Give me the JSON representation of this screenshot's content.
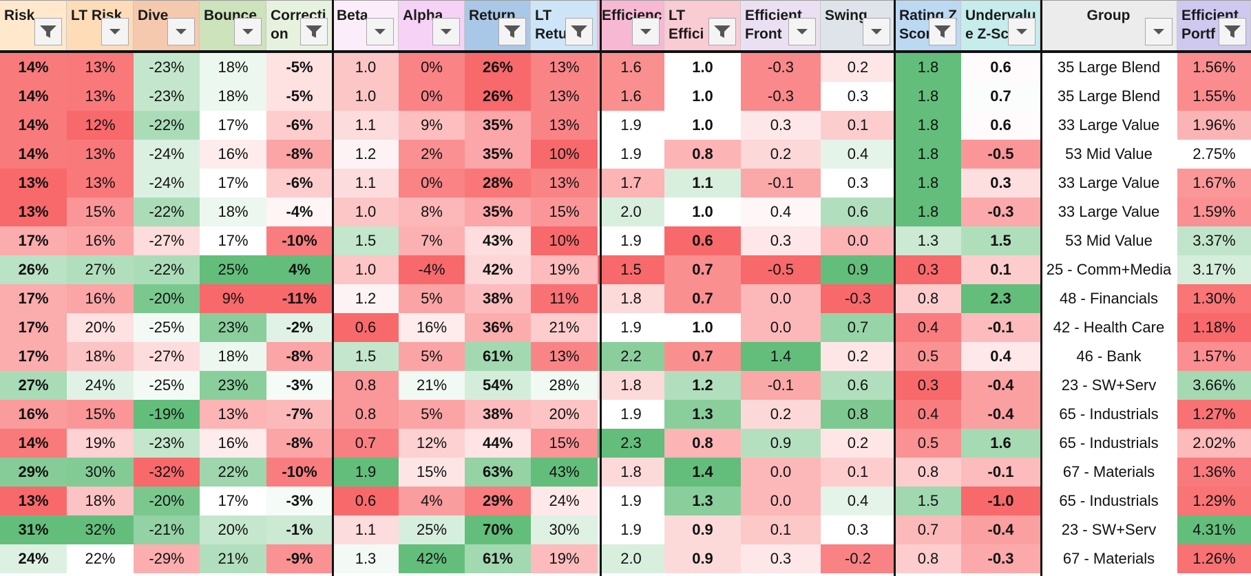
{
  "headers": [
    {
      "label": "Risk",
      "bg": "#ffe8cc",
      "filter": "active"
    },
    {
      "label": "LT Risk",
      "bg": "#ffdcb8",
      "filter": "dropdown"
    },
    {
      "label": "Dive",
      "bg": "#f5c9ad",
      "filter": "dropdown"
    },
    {
      "label": "Bounce",
      "bg": "#cde3bb",
      "filter": "dropdown"
    },
    {
      "label": "Correcti\non",
      "bg": "#e6f2de",
      "filter": "active"
    },
    {
      "label": "Beta",
      "bg": "#fbeefa",
      "filter": "dropdown"
    },
    {
      "label": "Alpha",
      "bg": "#f6d2f6",
      "filter": "dropdown"
    },
    {
      "label": "Return",
      "bg": "#a9c7e6",
      "filter": "active"
    },
    {
      "label": "LT\nRetu",
      "bg": "#cde5f7",
      "filter": "active"
    },
    {
      "label": "Efficiency",
      "bg": "#f7b8d4",
      "filter": "dropdown"
    },
    {
      "label": "LT\nEffici",
      "bg": "#f9cbd3",
      "filter": "active"
    },
    {
      "label": "Efficient\nFront",
      "bg": "#ebe0f1",
      "filter": "dropdown"
    },
    {
      "label": "Swing",
      "bg": "#dfe3ea",
      "filter": "dropdown"
    },
    {
      "label": "Rating Z\nScore",
      "bg": "#bcd9f2",
      "filter": "active"
    },
    {
      "label": "Undervalu\ne Z-Sc",
      "bg": "#c6ecec",
      "filter": "dropdown"
    },
    {
      "label": "Group",
      "bg": "#ececec",
      "filter": "dropdown"
    },
    {
      "label": "Efficient\nPortf",
      "bg": "#cfc8ef",
      "filter": "active"
    }
  ],
  "rows": [
    {
      "risk": "14%",
      "lt_risk": "13%",
      "dive": "-23%",
      "bounce": "18%",
      "correction": "-5%",
      "beta": "1.0",
      "alpha": "0%",
      "return": "26%",
      "lt_return": "13%",
      "efficiency": "1.6",
      "lt_efficiency": "1.0",
      "efficient_front": "-0.3",
      "swing": "0.2",
      "rating_z": "1.8",
      "undervalue_z": "0.6",
      "group": "35 Large Blend",
      "efficient_portf": "1.56%"
    },
    {
      "risk": "14%",
      "lt_risk": "13%",
      "dive": "-23%",
      "bounce": "18%",
      "correction": "-5%",
      "beta": "1.0",
      "alpha": "0%",
      "return": "26%",
      "lt_return": "13%",
      "efficiency": "1.6",
      "lt_efficiency": "1.0",
      "efficient_front": "-0.3",
      "swing": "0.3",
      "rating_z": "1.8",
      "undervalue_z": "0.7",
      "group": "35 Large Blend",
      "efficient_portf": "1.55%"
    },
    {
      "risk": "14%",
      "lt_risk": "12%",
      "dive": "-22%",
      "bounce": "17%",
      "correction": "-6%",
      "beta": "1.1",
      "alpha": "9%",
      "return": "35%",
      "lt_return": "13%",
      "efficiency": "1.9",
      "lt_efficiency": "1.0",
      "efficient_front": "0.3",
      "swing": "0.1",
      "rating_z": "1.8",
      "undervalue_z": "0.6",
      "group": "33 Large Value",
      "efficient_portf": "1.96%"
    },
    {
      "risk": "14%",
      "lt_risk": "13%",
      "dive": "-24%",
      "bounce": "16%",
      "correction": "-8%",
      "beta": "1.2",
      "alpha": "2%",
      "return": "35%",
      "lt_return": "10%",
      "efficiency": "1.9",
      "lt_efficiency": "0.8",
      "efficient_front": "0.2",
      "swing": "0.4",
      "rating_z": "1.8",
      "undervalue_z": "-0.5",
      "group": "53 Mid Value",
      "efficient_portf": "2.75%"
    },
    {
      "risk": "13%",
      "lt_risk": "13%",
      "dive": "-24%",
      "bounce": "17%",
      "correction": "-6%",
      "beta": "1.1",
      "alpha": "0%",
      "return": "28%",
      "lt_return": "13%",
      "efficiency": "1.7",
      "lt_efficiency": "1.1",
      "efficient_front": "-0.1",
      "swing": "0.3",
      "rating_z": "1.8",
      "undervalue_z": "0.3",
      "group": "33 Large Value",
      "efficient_portf": "1.67%"
    },
    {
      "risk": "13%",
      "lt_risk": "15%",
      "dive": "-22%",
      "bounce": "18%",
      "correction": "-4%",
      "beta": "1.0",
      "alpha": "8%",
      "return": "35%",
      "lt_return": "15%",
      "efficiency": "2.0",
      "lt_efficiency": "1.0",
      "efficient_front": "0.4",
      "swing": "0.6",
      "rating_z": "1.8",
      "undervalue_z": "-0.3",
      "group": "33 Large Value",
      "efficient_portf": "1.59%"
    },
    {
      "risk": "17%",
      "lt_risk": "16%",
      "dive": "-27%",
      "bounce": "17%",
      "correction": "-10%",
      "beta": "1.5",
      "alpha": "7%",
      "return": "43%",
      "lt_return": "10%",
      "efficiency": "1.9",
      "lt_efficiency": "0.6",
      "efficient_front": "0.3",
      "swing": "0.0",
      "rating_z": "1.3",
      "undervalue_z": "1.5",
      "group": "53 Mid Value",
      "efficient_portf": "3.37%"
    },
    {
      "risk": "26%",
      "lt_risk": "27%",
      "dive": "-22%",
      "bounce": "25%",
      "correction": "4%",
      "beta": "1.0",
      "alpha": "-4%",
      "return": "42%",
      "lt_return": "19%",
      "efficiency": "1.5",
      "lt_efficiency": "0.7",
      "efficient_front": "-0.5",
      "swing": "0.9",
      "rating_z": "0.3",
      "undervalue_z": "0.1",
      "group": "25 - Comm+Media",
      "efficient_portf": "3.17%"
    },
    {
      "risk": "17%",
      "lt_risk": "16%",
      "dive": "-20%",
      "bounce": "9%",
      "correction": "-11%",
      "beta": "1.2",
      "alpha": "5%",
      "return": "38%",
      "lt_return": "11%",
      "efficiency": "1.8",
      "lt_efficiency": "0.7",
      "efficient_front": "0.0",
      "swing": "-0.3",
      "rating_z": "0.8",
      "undervalue_z": "2.3",
      "group": "48 - Financials",
      "efficient_portf": "1.30%"
    },
    {
      "risk": "17%",
      "lt_risk": "20%",
      "dive": "-25%",
      "bounce": "23%",
      "correction": "-2%",
      "beta": "0.6",
      "alpha": "16%",
      "return": "36%",
      "lt_return": "21%",
      "efficiency": "1.9",
      "lt_efficiency": "1.0",
      "efficient_front": "0.0",
      "swing": "0.7",
      "rating_z": "0.4",
      "undervalue_z": "-0.1",
      "group": "42 - Health Care",
      "efficient_portf": "1.18%"
    },
    {
      "risk": "17%",
      "lt_risk": "18%",
      "dive": "-27%",
      "bounce": "18%",
      "correction": "-8%",
      "beta": "1.5",
      "alpha": "5%",
      "return": "61%",
      "lt_return": "13%",
      "efficiency": "2.2",
      "lt_efficiency": "0.7",
      "efficient_front": "1.4",
      "swing": "0.2",
      "rating_z": "0.5",
      "undervalue_z": "0.4",
      "group": "46 - Bank",
      "efficient_portf": "1.57%"
    },
    {
      "risk": "27%",
      "lt_risk": "24%",
      "dive": "-25%",
      "bounce": "23%",
      "correction": "-3%",
      "beta": "0.8",
      "alpha": "21%",
      "return": "54%",
      "lt_return": "28%",
      "efficiency": "1.8",
      "lt_efficiency": "1.2",
      "efficient_front": "-0.1",
      "swing": "0.6",
      "rating_z": "0.3",
      "undervalue_z": "-0.4",
      "group": "23 - SW+Serv",
      "efficient_portf": "3.66%"
    },
    {
      "risk": "16%",
      "lt_risk": "15%",
      "dive": "-19%",
      "bounce": "13%",
      "correction": "-7%",
      "beta": "0.8",
      "alpha": "5%",
      "return": "38%",
      "lt_return": "20%",
      "efficiency": "1.9",
      "lt_efficiency": "1.3",
      "efficient_front": "0.2",
      "swing": "0.8",
      "rating_z": "0.4",
      "undervalue_z": "-0.4",
      "group": "65 - Industrials",
      "efficient_portf": "1.27%"
    },
    {
      "risk": "14%",
      "lt_risk": "19%",
      "dive": "-23%",
      "bounce": "16%",
      "correction": "-8%",
      "beta": "0.7",
      "alpha": "12%",
      "return": "44%",
      "lt_return": "15%",
      "efficiency": "2.3",
      "lt_efficiency": "0.8",
      "efficient_front": "0.9",
      "swing": "0.2",
      "rating_z": "0.5",
      "undervalue_z": "1.6",
      "group": "65 - Industrials",
      "efficient_portf": "2.02%"
    },
    {
      "risk": "29%",
      "lt_risk": "30%",
      "dive": "-32%",
      "bounce": "22%",
      "correction": "-10%",
      "beta": "1.9",
      "alpha": "15%",
      "return": "63%",
      "lt_return": "43%",
      "efficiency": "1.8",
      "lt_efficiency": "1.4",
      "efficient_front": "0.0",
      "swing": "0.1",
      "rating_z": "0.8",
      "undervalue_z": "-0.1",
      "group": "67 - Materials",
      "efficient_portf": "1.36%"
    },
    {
      "risk": "13%",
      "lt_risk": "18%",
      "dive": "-20%",
      "bounce": "17%",
      "correction": "-3%",
      "beta": "0.6",
      "alpha": "4%",
      "return": "29%",
      "lt_return": "24%",
      "efficiency": "1.9",
      "lt_efficiency": "1.3",
      "efficient_front": "0.0",
      "swing": "0.4",
      "rating_z": "1.5",
      "undervalue_z": "-1.0",
      "group": "65 - Industrials",
      "efficient_portf": "1.29%"
    },
    {
      "risk": "31%",
      "lt_risk": "32%",
      "dive": "-21%",
      "bounce": "20%",
      "correction": "-1%",
      "beta": "1.1",
      "alpha": "25%",
      "return": "70%",
      "lt_return": "30%",
      "efficiency": "1.9",
      "lt_efficiency": "0.9",
      "efficient_front": "0.1",
      "swing": "0.3",
      "rating_z": "0.7",
      "undervalue_z": "-0.4",
      "group": "23 - SW+Serv",
      "efficient_portf": "4.31%"
    },
    {
      "risk": "24%",
      "lt_risk": "22%",
      "dive": "-29%",
      "bounce": "21%",
      "correction": "-9%",
      "beta": "1.3",
      "alpha": "42%",
      "return": "61%",
      "lt_return": "19%",
      "efficiency": "2.0",
      "lt_efficiency": "0.9",
      "efficient_front": "0.3",
      "swing": "-0.2",
      "rating_z": "0.8",
      "undervalue_z": "-0.3",
      "group": "67 - Materials",
      "efficient_portf": "1.26%"
    }
  ],
  "colors": {
    "green_strong": "#63be7b",
    "white": "#ffffff",
    "red_strong": "#f8696b",
    "separator": "#111111"
  }
}
